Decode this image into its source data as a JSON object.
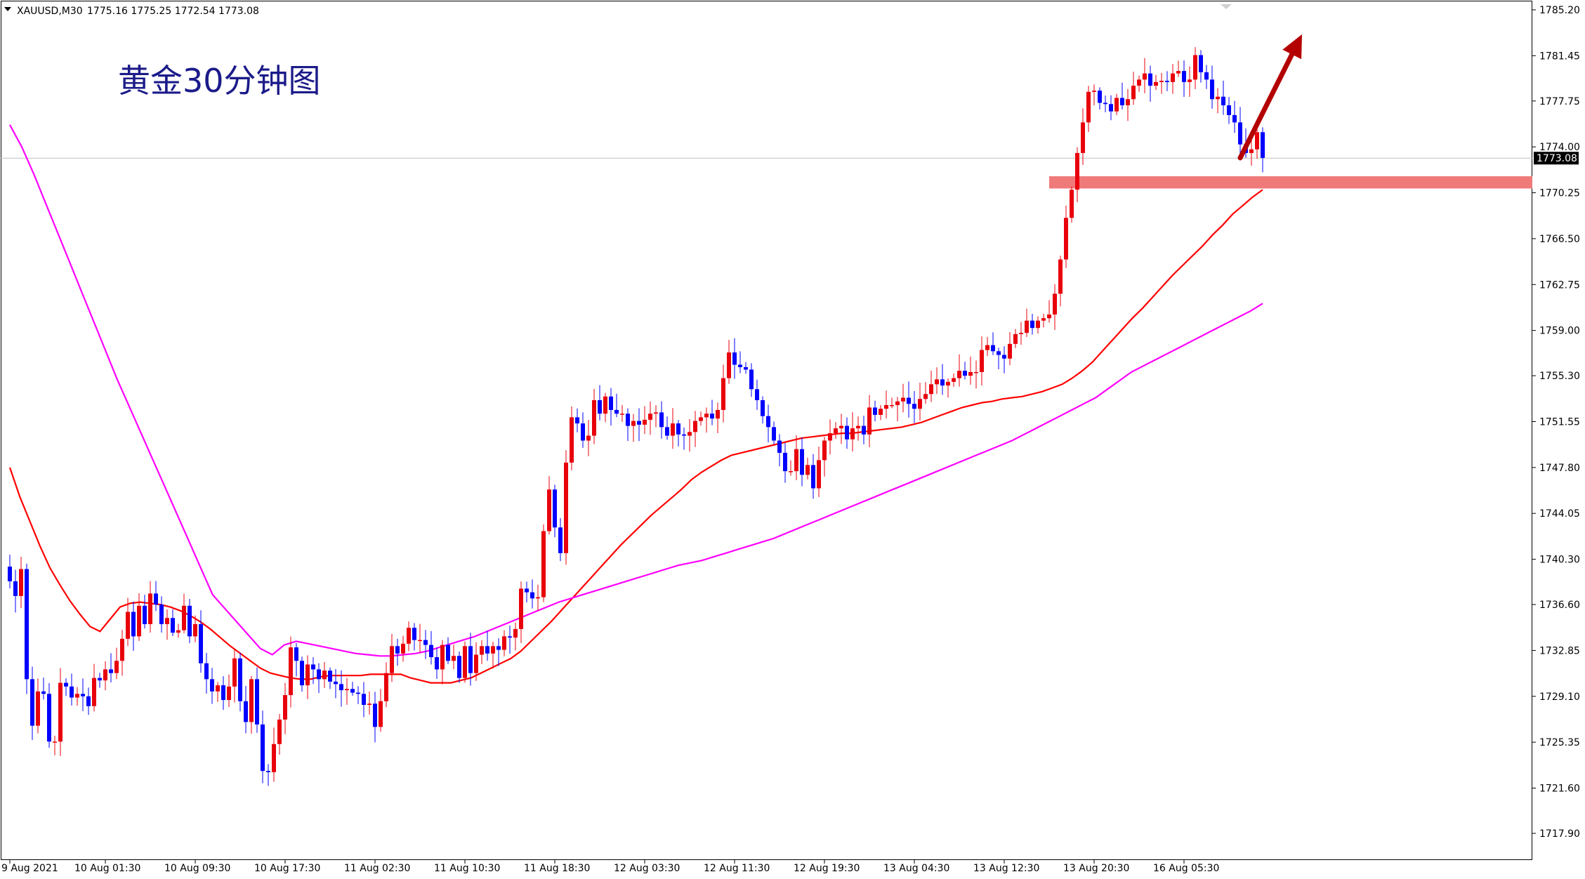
{
  "header": {
    "symbol": "XAUUSD,M30",
    "ohlc": "1775.16 1775.25 1772.54 1773.08"
  },
  "annotation": {
    "title": "黄金30分钟图"
  },
  "colors": {
    "background": "#ffffff",
    "axis": "#000000",
    "bull_candle": "#e8000b",
    "bear_candle": "#0000ff",
    "ma_fast": "#ff0000",
    "ma_slow": "#ff00ff",
    "support_zone": "#f07a7a",
    "arrow": "#b40000",
    "title_text": "#1b1b8a",
    "current_price_bg": "#000000",
    "current_price_text": "#ffffff",
    "current_price_line": "#c0c0c0"
  },
  "chart_data": {
    "type": "candlestick",
    "timeframe": "M30",
    "ylim": [
      1716.0,
      1786.5
    ],
    "current_price": 1773.08,
    "y_ticks": [
      "1785.20",
      "1781.45",
      "1777.75",
      "1774.00",
      "1770.25",
      "1766.50",
      "1762.75",
      "1759.00",
      "1755.30",
      "1751.55",
      "1747.80",
      "1744.05",
      "1740.30",
      "1736.60",
      "1732.85",
      "1729.10",
      "1725.35",
      "1721.60",
      "1717.90"
    ],
    "x_ticks": [
      {
        "label": "9 Aug 2021",
        "index": 0
      },
      {
        "label": "10 Aug 01:30",
        "index": 17
      },
      {
        "label": "10 Aug 09:30",
        "index": 33
      },
      {
        "label": "10 Aug 17:30",
        "index": 49
      },
      {
        "label": "11 Aug 02:30",
        "index": 65
      },
      {
        "label": "11 Aug 10:30",
        "index": 81
      },
      {
        "label": "11 Aug 18:30",
        "index": 97
      },
      {
        "label": "12 Aug 03:30",
        "index": 113
      },
      {
        "label": "12 Aug 11:30",
        "index": 129
      },
      {
        "label": "12 Aug 19:30",
        "index": 145
      },
      {
        "label": "13 Aug 04:30",
        "index": 161
      },
      {
        "label": "13 Aug 12:30",
        "index": 177
      },
      {
        "label": "13 Aug 20:30",
        "index": 193
      },
      {
        "label": "16 Aug 05:30",
        "index": 209
      }
    ],
    "support_zone": {
      "from_index": 185,
      "to_index": 272,
      "low": 1770.6,
      "high": 1771.6
    },
    "arrow": {
      "from_index": 219,
      "from_price": 1773.1,
      "to_index": 230,
      "to_price": 1783.2
    },
    "closes": [
      1738.5,
      1737.3,
      1739.5,
      1730.5,
      1726.7,
      1729.5,
      1729.3,
      1725.4,
      1725.4,
      1730.2,
      1729.9,
      1729.0,
      1729.3,
      1729.1,
      1728.3,
      1730.6,
      1730.4,
      1731.3,
      1731.0,
      1732.0,
      1733.8,
      1736.0,
      1734.0,
      1736.5,
      1735.0,
      1737.5,
      1736.6,
      1735.0,
      1735.5,
      1734.3,
      1734.5,
      1736.5,
      1734.0,
      1735.0,
      1731.8,
      1730.5,
      1729.5,
      1730.0,
      1728.8,
      1729.9,
      1732.2,
      1728.7,
      1727.0,
      1730.5,
      1726.8,
      1723.0,
      1722.9,
      1725.2,
      1727.2,
      1729.2,
      1733.1,
      1732.0,
      1730.0,
      1731.7,
      1731.3,
      1730.5,
      1731.2,
      1730.3,
      1730.1,
      1729.6,
      1729.7,
      1729.4,
      1729.3,
      1728.4,
      1728.5,
      1726.6,
      1728.7,
      1731.0,
      1733.2,
      1732.6,
      1733.4,
      1734.7,
      1733.7,
      1733.7,
      1733.3,
      1732.3,
      1731.3,
      1733.3,
      1732.0,
      1732.4,
      1730.6,
      1733.2,
      1731.0,
      1732.5,
      1733.2,
      1732.6,
      1733.2,
      1732.9,
      1734.0,
      1733.9,
      1734.6,
      1737.9,
      1737.6,
      1737.1,
      1737.2,
      1742.6,
      1746.0,
      1742.9,
      1740.8,
      1748.2,
      1751.9,
      1751.4,
      1750.0,
      1750.4,
      1753.3,
      1752.2,
      1753.6,
      1752.5,
      1752.2,
      1752.2,
      1751.2,
      1751.6,
      1751.3,
      1751.7,
      1752.2,
      1752.3,
      1751.1,
      1750.4,
      1751.4,
      1750.5,
      1750.4,
      1750.7,
      1751.6,
      1751.9,
      1752.2,
      1751.8,
      1752.5,
      1755.1,
      1757.2,
      1756.2,
      1756.0,
      1755.8,
      1754.2,
      1753.3,
      1752.0,
      1751.1,
      1750.0,
      1749.0,
      1747.5,
      1747.5,
      1749.3,
      1747.2,
      1748.0,
      1746.1,
      1748.4,
      1750.0,
      1750.6,
      1751.0,
      1751.2,
      1750.1,
      1751.0,
      1751.2,
      1750.5,
      1752.7,
      1752.1,
      1752.6,
      1752.9,
      1752.9,
      1753.2,
      1753.5,
      1753.0,
      1752.6,
      1753.4,
      1753.8,
      1754.6,
      1755.0,
      1754.5,
      1754.8,
      1755.1,
      1755.7,
      1755.3,
      1755.6,
      1755.6,
      1757.4,
      1757.8,
      1757.3,
      1757.0,
      1756.7,
      1757.9,
      1758.7,
      1758.8,
      1759.8,
      1759.2,
      1759.8,
      1760.0,
      1760.3,
      1762.0,
      1764.8,
      1768.2,
      1770.5,
      1773.5,
      1776.0,
      1778.5,
      1778.6,
      1777.6,
      1777.5,
      1776.9,
      1778.0,
      1777.4,
      1777.9,
      1779.0,
      1779.5,
      1780.0,
      1779.0,
      1779.3,
      1779.4,
      1779.3,
      1780.0,
      1780.2,
      1779.3,
      1779.5,
      1781.5,
      1780.1,
      1779.5,
      1777.9,
      1778.1,
      1777.4,
      1776.6,
      1776.0,
      1774.2,
      1773.5,
      1773.8,
      1775.2,
      1773.1
    ],
    "series": [
      {
        "name": "",
        "color": "#ff0000",
        "index_start": 0,
        "values": [
          1747.8,
          1745.4,
          1743.4,
          1741.4,
          1739.6,
          1738.2,
          1736.9,
          1735.8,
          1734.8,
          1734.4,
          1735.4,
          1736.4,
          1736.7,
          1736.8,
          1736.7,
          1736.6,
          1736.4,
          1736.1,
          1735.7,
          1735.2,
          1734.6,
          1733.9,
          1733.2,
          1732.6,
          1732.0,
          1731.4,
          1731.0,
          1730.8,
          1730.6,
          1730.5,
          1730.5,
          1730.7,
          1730.8,
          1730.8,
          1730.8,
          1730.8,
          1730.9,
          1730.9,
          1730.9,
          1730.9,
          1730.6,
          1730.4,
          1730.2,
          1730.2,
          1730.2,
          1730.4,
          1730.6,
          1731.0,
          1731.4,
          1731.8,
          1732.2,
          1732.8,
          1733.6,
          1734.4,
          1735.2,
          1736.1,
          1737.0,
          1737.9,
          1738.8,
          1739.7,
          1740.6,
          1741.5,
          1742.3,
          1743.1,
          1743.9,
          1744.6,
          1745.3,
          1746.0,
          1746.8,
          1747.4,
          1747.9,
          1748.4,
          1748.8,
          1749.0,
          1749.2,
          1749.4,
          1749.6,
          1749.8,
          1750.0,
          1750.2,
          1750.3,
          1750.4,
          1750.5,
          1750.6,
          1750.6,
          1750.7,
          1750.8,
          1750.9,
          1751.0,
          1751.1,
          1751.3,
          1751.5,
          1751.8,
          1752.1,
          1752.4,
          1752.7,
          1752.9,
          1753.1,
          1753.2,
          1753.4,
          1753.5,
          1753.6,
          1753.8,
          1754.0,
          1754.3,
          1754.6,
          1755.1,
          1755.7,
          1756.4,
          1757.3,
          1758.2,
          1759.1,
          1760.0,
          1760.8,
          1761.7,
          1762.6,
          1763.5,
          1764.3,
          1765.1,
          1765.9,
          1766.8,
          1767.6,
          1768.5,
          1769.2,
          1769.9,
          1770.5
        ]
      },
      {
        "name": "",
        "color": "#ff00ff",
        "index_start": 0,
        "values": [
          1775.8,
          1774.0,
          1771.8,
          1769.4,
          1767.0,
          1764.6,
          1762.2,
          1759.8,
          1757.4,
          1755.0,
          1752.8,
          1750.6,
          1748.4,
          1746.2,
          1744.0,
          1741.8,
          1739.6,
          1737.4,
          1736.3,
          1735.2,
          1734.1,
          1733.0,
          1732.5,
          1733.3,
          1733.6,
          1733.4,
          1733.2,
          1733.0,
          1732.8,
          1732.6,
          1732.5,
          1732.4,
          1732.4,
          1732.5,
          1732.6,
          1732.8,
          1733.1,
          1733.4,
          1733.7,
          1734.0,
          1734.4,
          1734.8,
          1735.2,
          1735.6,
          1736.0,
          1736.4,
          1736.8,
          1737.1,
          1737.4,
          1737.7,
          1738.0,
          1738.3,
          1738.6,
          1738.9,
          1739.2,
          1739.5,
          1739.8,
          1740.0,
          1740.2,
          1740.5,
          1740.8,
          1741.1,
          1741.4,
          1741.7,
          1742.0,
          1742.4,
          1742.8,
          1743.2,
          1743.6,
          1744.0,
          1744.4,
          1744.8,
          1745.2,
          1745.6,
          1746.0,
          1746.4,
          1746.8,
          1747.2,
          1747.6,
          1748.0,
          1748.4,
          1748.8,
          1749.2,
          1749.6,
          1750.0,
          1750.5,
          1751.0,
          1751.5,
          1752.0,
          1752.5,
          1753.0,
          1753.5,
          1754.2,
          1754.9,
          1755.6,
          1756.1,
          1756.6,
          1757.1,
          1757.6,
          1758.1,
          1758.6,
          1759.1,
          1759.6,
          1760.1,
          1760.6,
          1761.2
        ]
      }
    ]
  }
}
